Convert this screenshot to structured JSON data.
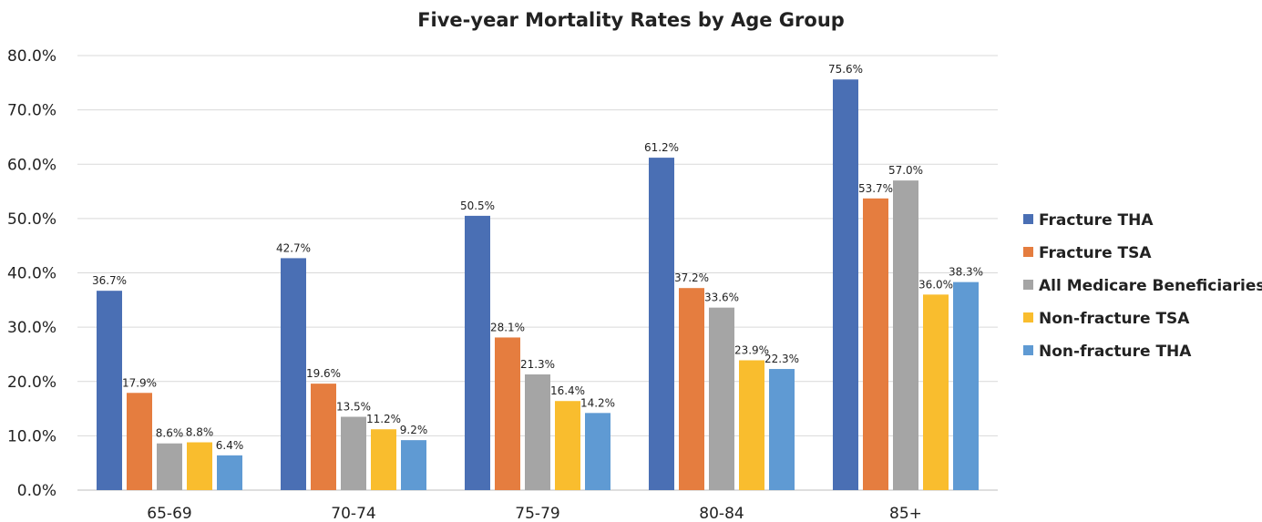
{
  "chart_data": {
    "type": "bar",
    "title": "Five-year Mortality Rates by Age Group",
    "xlabel": "",
    "ylabel": "",
    "categories": [
      "65-69",
      "70-74",
      "75-79",
      "80-84",
      "85+"
    ],
    "series": [
      {
        "name": "Fracture THA",
        "color": "#4a6fb4",
        "values": [
          36.7,
          42.7,
          50.5,
          61.2,
          75.6
        ],
        "labels": [
          "36.7%",
          "42.7%",
          "50.5%",
          "61.2%",
          "75.6%"
        ]
      },
      {
        "name": "Fracture TSA",
        "color": "#e57d3f",
        "values": [
          17.9,
          19.6,
          28.1,
          37.2,
          53.7
        ],
        "labels": [
          "17.9%",
          "19.6%",
          "28.1%",
          "37.2%",
          "53.7%"
        ]
      },
      {
        "name": "All Medicare Beneficiaries",
        "color": "#a5a5a5",
        "values": [
          8.6,
          13.5,
          21.3,
          33.6,
          57.0
        ],
        "labels": [
          "8.6%",
          "13.5%",
          "21.3%",
          "33.6%",
          "57.0%"
        ]
      },
      {
        "name": "Non-fracture TSA",
        "color": "#f9bd2e",
        "values": [
          8.8,
          11.2,
          16.4,
          23.9,
          36.0
        ],
        "labels": [
          "8.8%",
          "11.2%",
          "16.4%",
          "23.9%",
          "36.0%"
        ]
      },
      {
        "name": "Non-fracture THA",
        "color": "#5f9ad3",
        "values": [
          6.4,
          9.2,
          14.2,
          22.3,
          38.3
        ],
        "labels": [
          "6.4%",
          "9.2%",
          "14.2%",
          "22.3%",
          "38.3%"
        ]
      }
    ],
    "ylim": [
      0,
      80
    ],
    "yticks": [
      0,
      10,
      20,
      30,
      40,
      50,
      60,
      70,
      80
    ],
    "ytick_labels": [
      "0.0%",
      "10.0%",
      "20.0%",
      "30.0%",
      "40.0%",
      "50.0%",
      "60.0%",
      "70.0%",
      "80.0%"
    ],
    "grid": true,
    "legend_position": "right",
    "gridline_color": "#d9d9d9",
    "axis_color": "#bfbfbf"
  }
}
